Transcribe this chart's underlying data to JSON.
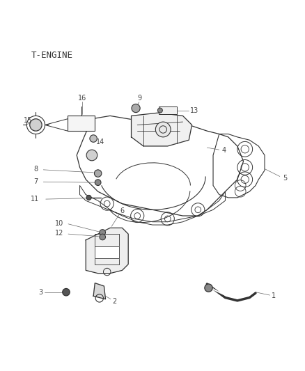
{
  "title": "T-ENGINE",
  "background_color": "#ffffff",
  "line_color": "#333333",
  "text_color": "#333333",
  "fig_width": 4.38,
  "fig_height": 5.33,
  "dpi": 100
}
